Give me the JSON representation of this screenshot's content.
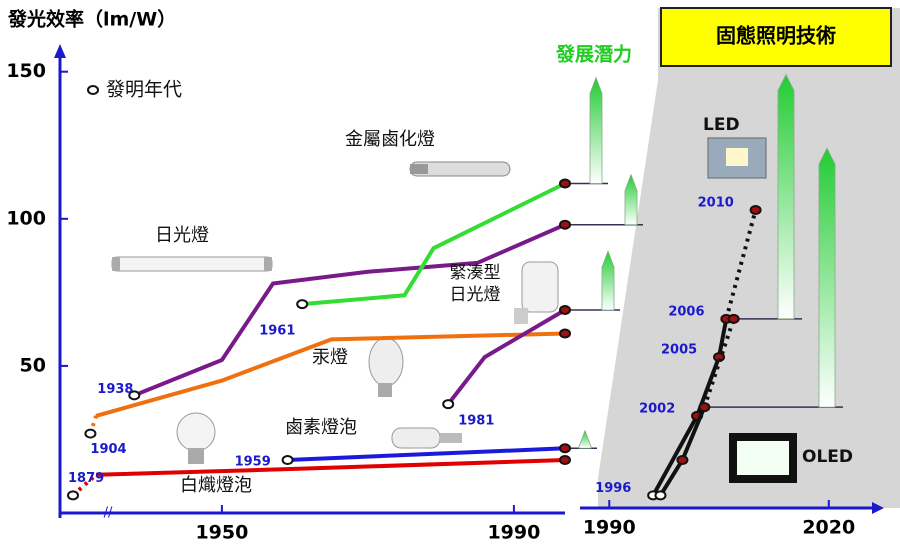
{
  "chart_data": {
    "type": "line",
    "title": "固態照明技術",
    "ylabel": "發光效率（lm/W）",
    "potential_label": "發展潛力",
    "legend_label": "發明年代",
    "ylim": [
      0,
      155
    ],
    "yticks": [
      50,
      100,
      150
    ],
    "xlim": [
      1879,
      1997
    ],
    "xticks": [
      1950,
      1990
    ],
    "x2lim": [
      1986,
      2027
    ],
    "x2ticks": [
      1990,
      2020
    ],
    "series": [
      {
        "name": "白熾燈泡",
        "color": "#e00000",
        "x": [
          1879,
          1912,
          1960,
          1997
        ],
        "values": [
          6,
          13,
          15,
          18
        ],
        "dash": "first",
        "label_points": "first",
        "xaxis": "x"
      },
      {
        "name": "鹵素燈泡",
        "color": "#1a1adc",
        "x": [
          1959,
          1997
        ],
        "values": [
          18,
          22
        ],
        "label_points": "first",
        "xaxis": "x",
        "potential": 28
      },
      {
        "name": "汞燈",
        "color": "#f07010",
        "x": [
          1904,
          1912,
          1950,
          1965,
          1997
        ],
        "values": [
          27,
          33,
          45,
          59,
          61
        ],
        "dash": "first",
        "label_points": "first",
        "xaxis": "x"
      },
      {
        "name": "日光燈",
        "color": "#7a1a8a",
        "x": [
          1938,
          1950,
          1957,
          1970,
          1985,
          1997
        ],
        "values": [
          40,
          52,
          78,
          82,
          85,
          98
        ],
        "label_points": "first",
        "xaxis": "x",
        "potential": 115
      },
      {
        "name": "金屬鹵化燈",
        "color": "#33dd33",
        "x": [
          1961,
          1975,
          1979,
          1997
        ],
        "values": [
          71,
          74,
          90,
          112
        ],
        "label_points": "first",
        "xaxis": "x",
        "potential": 148
      },
      {
        "name": "緊湊型日光燈",
        "color": "#7a1a8a",
        "x": [
          1981,
          1986,
          1997
        ],
        "values": [
          37,
          53,
          69
        ],
        "label_points": "first",
        "xaxis": "x",
        "potential": 89
      },
      {
        "name": "LED",
        "color": "#111111",
        "x": [
          1996,
          2002,
          2005,
          2006,
          2010
        ],
        "values": [
          6,
          33,
          53,
          66,
          103
        ],
        "dash": "last",
        "label_points": "all",
        "xaxis": "x2",
        "potential": 149
      },
      {
        "name": "OLED",
        "color": "#111111",
        "x": [
          1997,
          2000,
          2003,
          2007
        ],
        "values": [
          6,
          18,
          36,
          66
        ],
        "dash": "last",
        "label_points": "none",
        "xaxis": "x2",
        "potential": 124
      }
    ]
  }
}
